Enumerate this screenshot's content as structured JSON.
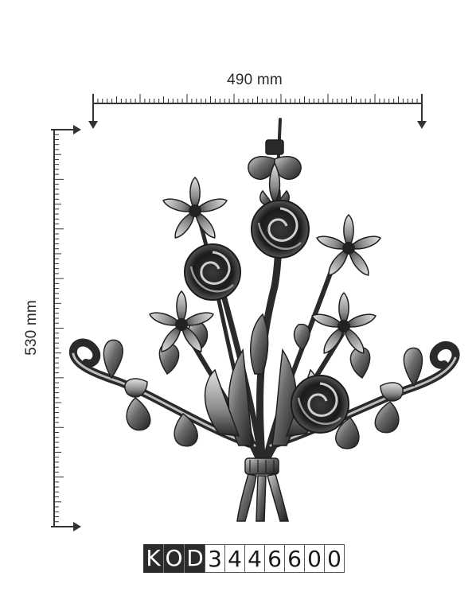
{
  "dimensions": {
    "width_label": "490 mm",
    "height_label": "530 mm"
  },
  "product": {
    "illustration": "wrought-iron-flower-bouquet",
    "code_prefix": [
      "K",
      "O",
      "D"
    ],
    "code_digits": [
      "3",
      "4",
      "4",
      "6",
      "6",
      "0",
      "0"
    ]
  },
  "colors": {
    "metal_dark": "#1e1e1e",
    "metal_mid": "#6a6a6a",
    "metal_light": "#bdbdbd",
    "ruler": "#333333",
    "code_dark_bg": "#2b2b2b"
  }
}
